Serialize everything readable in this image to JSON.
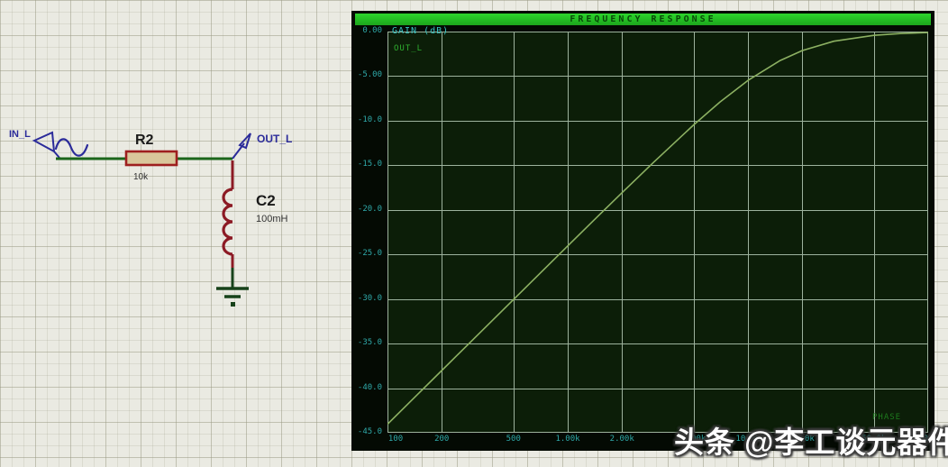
{
  "watermark": "头条 @李工谈元器件",
  "schematic": {
    "input_label": "IN_L",
    "output_label": "OUT_L",
    "resistor": {
      "ref": "R2",
      "value": "10k"
    },
    "inductor": {
      "ref": "C2",
      "value": "100mH"
    },
    "colors": {
      "wire": "#1b651b",
      "component_outline": "#9e1f1f",
      "component_fill": "#d9c79b",
      "inductor": "#8c1a24",
      "terminal": "#2b2b9a",
      "ground": "#17421a"
    }
  },
  "graph": {
    "title": "FREQUENCY RESPONSE",
    "gain_axis_label": "GAIN (dB)",
    "trace_label": "OUT_L",
    "phase_label": "PHASE",
    "colors": {
      "window_bg": "#040a03",
      "plot_bg": "#0c1e08",
      "titlebar_green": "#25c325",
      "grid": "#9db29d",
      "curve": "#8cb062",
      "tick_text": "#2fa9a9",
      "gain_text": "#38c4c4",
      "trace_text": "#2fae2f",
      "phase_text": "#1d7a1d"
    }
  },
  "chart_data": {
    "type": "line",
    "title": "FREQUENCY RESPONSE",
    "ylabel": "GAIN (dB)",
    "right_axis_label": "PHASE",
    "legend": [
      "OUT_L"
    ],
    "x_scale": "log",
    "x_range": [
      100,
      100000
    ],
    "y_range": [
      -45,
      0
    ],
    "grid": true,
    "x_ticks": [
      {
        "f": 100,
        "label": "100"
      },
      {
        "f": 200,
        "label": "200"
      },
      {
        "f": 500,
        "label": "500"
      },
      {
        "f": 1000,
        "label": "1.00k"
      },
      {
        "f": 2000,
        "label": "2.00k"
      },
      {
        "f": 5000,
        "label": "5.00k"
      },
      {
        "f": 10000,
        "label": "10.0k"
      },
      {
        "f": 20000,
        "label": "20.0k"
      },
      {
        "f": 50000,
        "label": "50.0k"
      },
      {
        "f": 100000,
        "label": "100k"
      }
    ],
    "y_ticks": [
      {
        "v": 0,
        "label": "0.00"
      },
      {
        "v": -5,
        "label": "-5.00"
      },
      {
        "v": -10,
        "label": "-10.0"
      },
      {
        "v": -15,
        "label": "-15.0"
      },
      {
        "v": -20,
        "label": "-20.0"
      },
      {
        "v": -25,
        "label": "-25.0"
      },
      {
        "v": -30,
        "label": "-30.0"
      },
      {
        "v": -35,
        "label": "-35.0"
      },
      {
        "v": -40,
        "label": "-40.0"
      },
      {
        "v": -45,
        "label": "-45.0"
      }
    ],
    "series": [
      {
        "name": "OUT_L",
        "color": "#8cb062",
        "cutoff_hz": 15915,
        "points": [
          [
            100,
            -44.04
          ],
          [
            150,
            -40.52
          ],
          [
            200,
            -38.02
          ],
          [
            300,
            -34.5
          ],
          [
            500,
            -30.06
          ],
          [
            700,
            -27.14
          ],
          [
            1000,
            -24.05
          ],
          [
            1500,
            -20.55
          ],
          [
            2000,
            -18.08
          ],
          [
            3000,
            -14.65
          ],
          [
            5000,
            -10.47
          ],
          [
            7000,
            -7.9
          ],
          [
            10000,
            -5.48
          ],
          [
            15000,
            -3.28
          ],
          [
            20000,
            -2.13
          ],
          [
            30000,
            -1.08
          ],
          [
            50000,
            -0.42
          ],
          [
            70000,
            -0.22
          ],
          [
            100000,
            -0.11
          ]
        ]
      }
    ]
  }
}
